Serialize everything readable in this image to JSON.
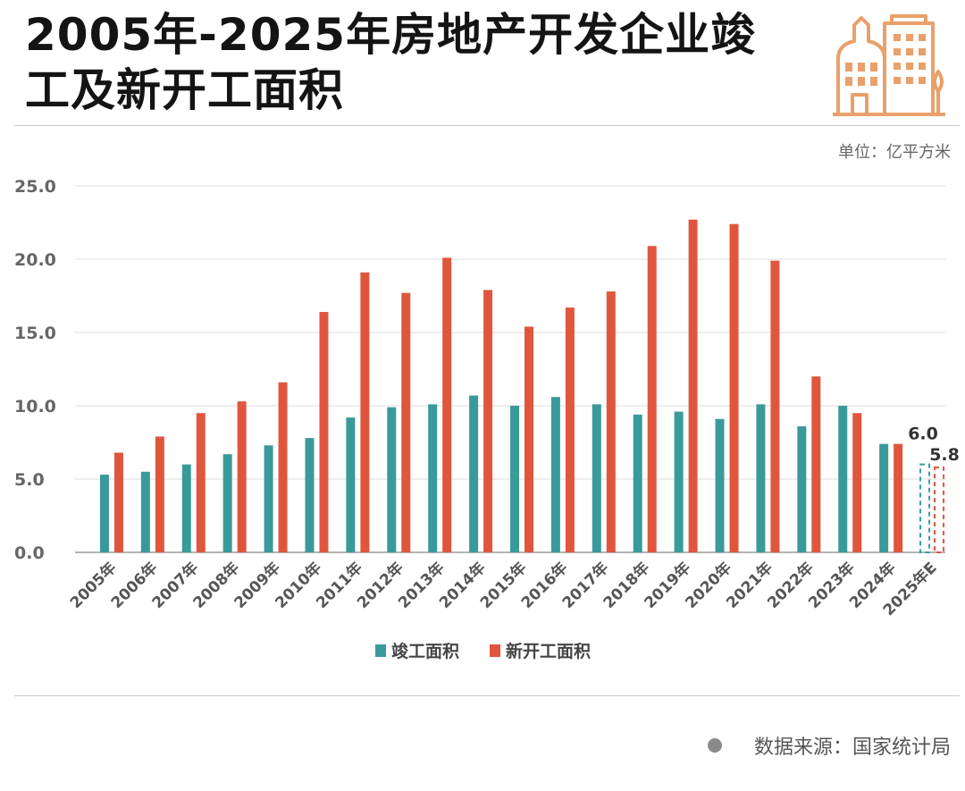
{
  "title": "2005年-2025年房地产开发企业竣工及新开工面积",
  "unit_label": "单位：亿平方米",
  "source_label": "数据来源：国家统计局",
  "logo": {
    "icon": "city-buildings-icon",
    "color": "#e9a06a"
  },
  "colors": {
    "completed": "#3a9a9b",
    "new_start": "#e0563d"
  },
  "chart_data": {
    "type": "bar",
    "title": "2005年-2025年房地产开发企业竣工及新开工面积",
    "ylabel": "",
    "xlabel": "",
    "unit": "亿平方米",
    "ylim": [
      0,
      25
    ],
    "yticks": [
      "0.0",
      "5.0",
      "10.0",
      "15.0",
      "20.0",
      "25.0"
    ],
    "grid": true,
    "legend": "bottom",
    "categories": [
      "2005年",
      "2006年",
      "2007年",
      "2008年",
      "2009年",
      "2010年",
      "2011年",
      "2012年",
      "2013年",
      "2014年",
      "2015年",
      "2016年",
      "2017年",
      "2018年",
      "2019年",
      "2020年",
      "2021年",
      "2022年",
      "2023年",
      "2024年",
      "2025年E"
    ],
    "series": [
      {
        "name": "竣工面积",
        "color": "#3a9a9b",
        "values": [
          5.3,
          5.5,
          6.0,
          6.7,
          7.3,
          7.8,
          9.2,
          9.9,
          10.1,
          10.7,
          10.0,
          10.6,
          10.1,
          9.4,
          9.6,
          9.1,
          10.1,
          8.6,
          10.0,
          7.4,
          6.0
        ]
      },
      {
        "name": "新开工面积",
        "color": "#e0563d",
        "values": [
          6.8,
          7.9,
          9.5,
          10.3,
          11.6,
          16.4,
          19.1,
          17.7,
          20.1,
          17.9,
          15.4,
          16.7,
          17.8,
          20.9,
          22.7,
          22.4,
          19.9,
          12.0,
          9.5,
          7.4,
          5.8
        ]
      }
    ],
    "estimate_category": "2025年E",
    "data_labels": [
      {
        "category": "2025年E",
        "series": "竣工面积",
        "text": "6.0"
      },
      {
        "category": "2025年E",
        "series": "新开工面积",
        "text": "5.8"
      }
    ]
  }
}
